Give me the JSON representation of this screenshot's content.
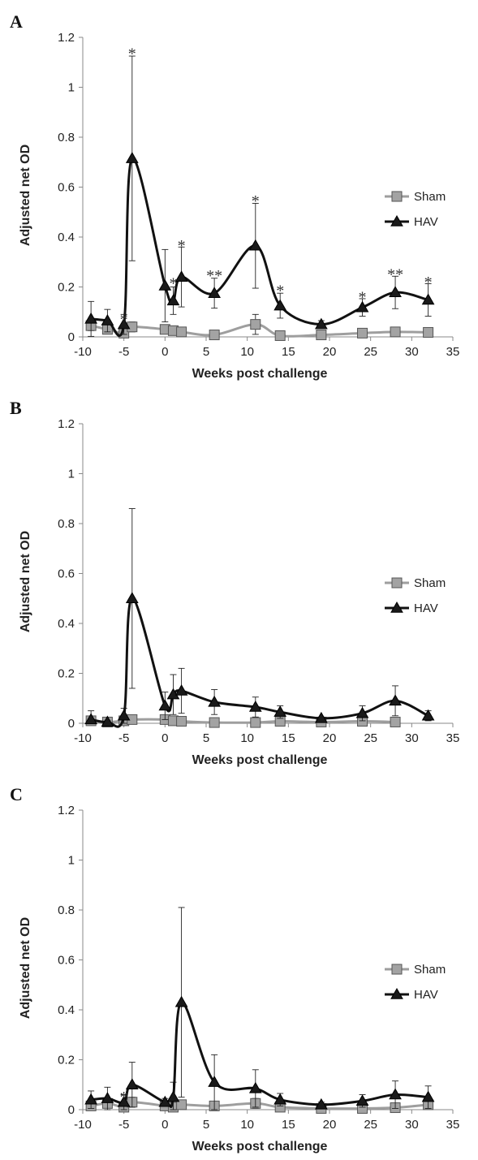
{
  "chart_data": [
    {
      "panel": "A",
      "type": "line",
      "xlabel": "Weeks post challenge",
      "ylabel": "Adjusted net OD",
      "xlim": [
        -10,
        35
      ],
      "ylim": [
        0,
        1.2
      ],
      "xticks": [
        -10,
        -5,
        0,
        5,
        10,
        15,
        20,
        25,
        30,
        35
      ],
      "yticks": [
        0,
        0.2,
        0.4,
        0.6,
        0.8,
        1,
        1.2
      ],
      "xtick_labels": [
        "-10",
        "-5",
        "0",
        "5",
        "10",
        "15",
        "20",
        "25",
        "30",
        "35"
      ],
      "ytick_labels": [
        "0",
        "0.2",
        "0.4",
        "0.6",
        "0.8",
        "1",
        "1.2"
      ],
      "grid": false,
      "legend_position": "right",
      "series": [
        {
          "name": "Sham",
          "marker": "square",
          "line_color": "#9e9e9e",
          "marker_color": "#a3a3a3",
          "x": [
            -9,
            -7,
            -5,
            -4,
            0,
            1,
            2,
            6,
            11,
            14,
            19,
            24,
            28,
            32
          ],
          "y": [
            0.045,
            0.03,
            0.015,
            0.04,
            0.03,
            0.025,
            0.02,
            0.008,
            0.05,
            0.005,
            0.008,
            0.015,
            0.02,
            0.018
          ],
          "error": [
            0.02,
            0.015,
            0.01,
            0.02,
            0.015,
            0.01,
            0.01,
            0.005,
            0.04,
            0.005,
            0.005,
            0.01,
            0.01,
            0.01
          ]
        },
        {
          "name": "HAV",
          "marker": "triangle",
          "line_color": "#111111",
          "marker_color": "#1a1a1a",
          "x": [
            -9,
            -7,
            -5,
            -4,
            0,
            1,
            2,
            6,
            11,
            14,
            19,
            24,
            28,
            32
          ],
          "y": [
            0.072,
            0.065,
            0.05,
            0.715,
            0.205,
            0.145,
            0.24,
            0.175,
            0.365,
            0.125,
            0.05,
            0.118,
            0.178,
            0.148
          ],
          "error": [
            0.07,
            0.045,
            0.04,
            0.41,
            0.145,
            0.055,
            0.12,
            0.06,
            0.17,
            0.05,
            0.015,
            0.035,
            0.065,
            0.065
          ]
        }
      ],
      "annotations": [
        {
          "text": "*",
          "x": -5,
          "y": 0.075
        },
        {
          "text": "*",
          "x": -4,
          "y": 1.14
        },
        {
          "text": "*",
          "x": 1,
          "y": 0.22
        },
        {
          "text": "*",
          "x": 2,
          "y": 0.37
        },
        {
          "text": "**",
          "x": 6,
          "y": 0.25
        },
        {
          "text": "*",
          "x": 11,
          "y": 0.55
        },
        {
          "text": "*",
          "x": 14,
          "y": 0.19
        },
        {
          "text": "*",
          "x": 24,
          "y": 0.165
        },
        {
          "text": "**",
          "x": 28,
          "y": 0.255
        },
        {
          "text": "*",
          "x": 32,
          "y": 0.225
        }
      ]
    },
    {
      "panel": "B",
      "type": "line",
      "xlabel": "Weeks post challenge",
      "ylabel": "Adjusted net OD",
      "xlim": [
        -10,
        35
      ],
      "ylim": [
        0,
        1.2
      ],
      "xticks": [
        -10,
        -5,
        0,
        5,
        10,
        15,
        20,
        25,
        30,
        35
      ],
      "yticks": [
        0,
        0.2,
        0.4,
        0.6,
        0.8,
        1,
        1.2
      ],
      "xtick_labels": [
        "-10",
        "-5",
        "0",
        "5",
        "10",
        "15",
        "20",
        "25",
        "30",
        "35"
      ],
      "ytick_labels": [
        "0",
        "0.2",
        "0.4",
        "0.6",
        "0.8",
        "1",
        "1.2"
      ],
      "grid": false,
      "legend_position": "right",
      "series": [
        {
          "name": "Sham",
          "marker": "square",
          "line_color": "#9e9e9e",
          "marker_color": "#a3a3a3",
          "x": [
            -9,
            -7,
            -5,
            -4,
            0,
            1,
            2,
            6,
            11,
            14,
            19,
            24,
            28
          ],
          "y": [
            0.01,
            0.005,
            0.01,
            0.015,
            0.015,
            0.01,
            0.008,
            0.003,
            0.003,
            0.008,
            0.005,
            0.008,
            0.005
          ],
          "error": [
            0.01,
            0.005,
            0.01,
            0.01,
            0.01,
            0.01,
            0.005,
            0.003,
            0.003,
            0.005,
            0.003,
            0.005,
            0.003
          ]
        },
        {
          "name": "HAV",
          "marker": "triangle",
          "line_color": "#111111",
          "marker_color": "#1a1a1a",
          "x": [
            -9,
            -7,
            -5,
            -4,
            0,
            1,
            2,
            6,
            11,
            14,
            19,
            24,
            28,
            32
          ],
          "y": [
            0.015,
            0.005,
            0.03,
            0.5,
            0.07,
            0.115,
            0.13,
            0.085,
            0.065,
            0.045,
            0.02,
            0.04,
            0.09,
            0.03
          ],
          "error": [
            0.035,
            0.005,
            0.03,
            0.36,
            0.055,
            0.08,
            0.09,
            0.05,
            0.04,
            0.025,
            0.005,
            0.03,
            0.06,
            0.02
          ]
        }
      ],
      "annotations": []
    },
    {
      "panel": "C",
      "type": "line",
      "xlabel": "Weeks post challenge",
      "ylabel": "Adjusted net OD",
      "xlim": [
        -10,
        35
      ],
      "ylim": [
        0,
        1.2
      ],
      "xticks": [
        -10,
        -5,
        0,
        5,
        10,
        15,
        20,
        25,
        30,
        35
      ],
      "yticks": [
        0,
        0.2,
        0.4,
        0.6,
        0.8,
        1,
        1.2
      ],
      "xtick_labels": [
        "-10",
        "-5",
        "0",
        "5",
        "10",
        "15",
        "20",
        "25",
        "30",
        "35"
      ],
      "ytick_labels": [
        "0",
        "0.2",
        "0.4",
        "0.6",
        "0.8",
        "1",
        "1.2"
      ],
      "grid": false,
      "legend_position": "right",
      "series": [
        {
          "name": "Sham",
          "marker": "square",
          "line_color": "#9e9e9e",
          "marker_color": "#a3a3a3",
          "x": [
            -9,
            -7,
            -5,
            -4,
            0,
            1,
            2,
            6,
            11,
            14,
            19,
            24,
            28,
            32
          ],
          "y": [
            0.015,
            0.025,
            0.01,
            0.03,
            0.015,
            0.01,
            0.02,
            0.015,
            0.025,
            0.01,
            0.005,
            0.005,
            0.008,
            0.02
          ],
          "error": [
            0.01,
            0.015,
            0.01,
            0.02,
            0.01,
            0.01,
            0.01,
            0.01,
            0.02,
            0.005,
            0.003,
            0.003,
            0.005,
            0.01
          ]
        },
        {
          "name": "HAV",
          "marker": "triangle",
          "line_color": "#111111",
          "marker_color": "#1a1a1a",
          "x": [
            -9,
            -7,
            -5,
            -4,
            0,
            1,
            2,
            6,
            11,
            14,
            19,
            24,
            28,
            32
          ],
          "y": [
            0.04,
            0.045,
            0.03,
            0.1,
            0.03,
            0.05,
            0.43,
            0.11,
            0.085,
            0.04,
            0.02,
            0.035,
            0.06,
            0.05
          ],
          "error": [
            0.035,
            0.045,
            0.03,
            0.09,
            0.015,
            0.06,
            0.38,
            0.11,
            0.075,
            0.025,
            0.01,
            0.025,
            0.055,
            0.045
          ]
        }
      ],
      "annotations": [
        {
          "text": "*",
          "x": -5,
          "y": 0.055
        }
      ]
    }
  ]
}
